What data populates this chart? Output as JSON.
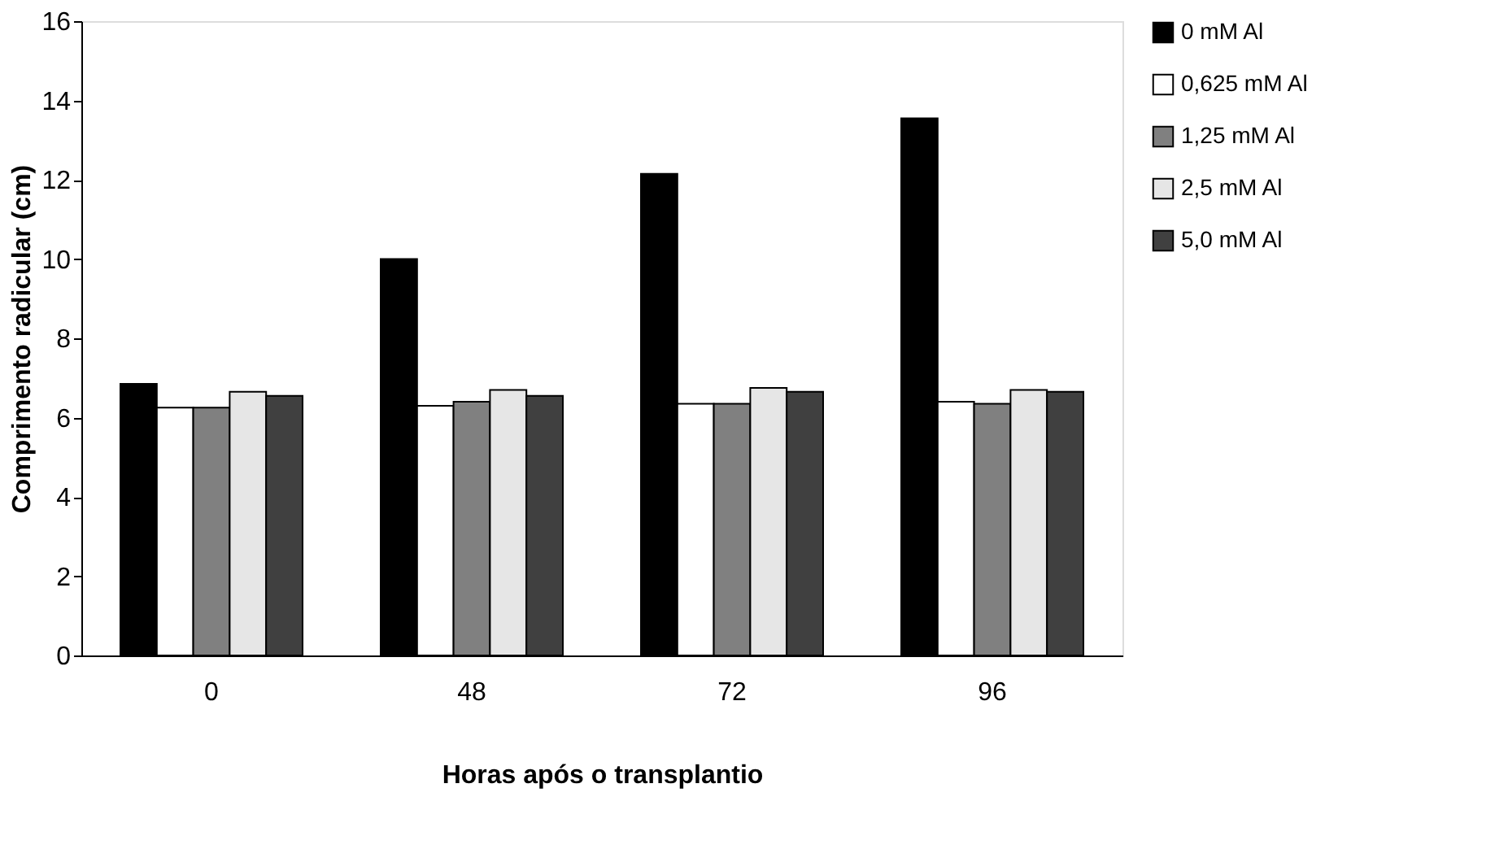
{
  "chart_data": {
    "type": "bar",
    "xlabel": "Horas após o transplantio",
    "ylabel": "Comprimento radicular (cm)",
    "categories": [
      "0",
      "48",
      "72",
      "96"
    ],
    "series": [
      {
        "name": "0 mM Al",
        "color": "#000000",
        "values": [
          6.85,
          10.0,
          12.15,
          13.55
        ]
      },
      {
        "name": "0,625 mM Al",
        "color": "#ffffff",
        "values": [
          6.25,
          6.3,
          6.35,
          6.4
        ]
      },
      {
        "name": "1,25 mM Al",
        "color": "#808080",
        "values": [
          6.25,
          6.4,
          6.35,
          6.35
        ]
      },
      {
        "name": "2,5 mM Al",
        "color": "#e6e6e6",
        "values": [
          6.65,
          6.7,
          6.75,
          6.7
        ]
      },
      {
        "name": "5,0 mM Al",
        "color": "#404040",
        "values": [
          6.55,
          6.55,
          6.65,
          6.65
        ]
      }
    ],
    "ylim": [
      0,
      16
    ],
    "yticks": [
      0,
      2,
      4,
      6,
      8,
      10,
      12,
      14,
      16
    ],
    "grid": false,
    "legend": "right"
  }
}
